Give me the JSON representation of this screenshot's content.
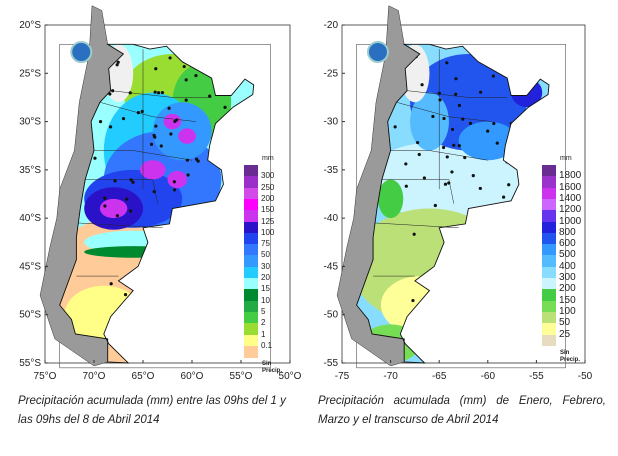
{
  "maps": [
    {
      "id": "weekly",
      "lat_labels": [
        "20°S",
        "25°S",
        "30°S",
        "35°S",
        "40°S",
        "45°S",
        "50°S",
        "55°S"
      ],
      "lon_labels": [
        "75°O",
        "70°O",
        "65°O",
        "60°O",
        "55°O",
        "50°O"
      ],
      "legend": {
        "unit": "mm",
        "no_precip_label": [
          "Sin",
          "Precip."
        ],
        "levels": [
          "300",
          "250",
          "200",
          "150",
          "125",
          "100",
          "75",
          "50",
          "30",
          "20",
          "15",
          "10",
          "5",
          "2",
          "1",
          "0.1"
        ],
        "colors": [
          "#6a2c91",
          "#9b30c8",
          "#d24be8",
          "#ff00ff",
          "#cc33ee",
          "#2a12c8",
          "#2244ee",
          "#3377ff",
          "#3399ff",
          "#22ccff",
          "#99ffff",
          "#008a30",
          "#22aa44",
          "#44cc44",
          "#99dd33",
          "#ffff88",
          "#ffcc99"
        ]
      },
      "caption": [
        "Precipitación acumulada (mm) entre las 09hs del 1 y",
        "las 09hs del 8 de Abril 2014"
      ]
    },
    {
      "id": "seasonal",
      "lat_labels": [
        "-20",
        "-25",
        "-30",
        "-35",
        "-40",
        "-45",
        "-50",
        "-55"
      ],
      "lon_labels": [
        "-75",
        "-70",
        "-65",
        "-60",
        "-55",
        "-50"
      ],
      "legend": {
        "unit": "mm",
        "no_precip_label": [
          "Sin",
          "Precip."
        ],
        "levels": [
          "1800",
          "1600",
          "1400",
          "1200",
          "1000",
          "800",
          "600",
          "500",
          "400",
          "300",
          "200",
          "150",
          "100",
          "50",
          "25"
        ],
        "colors": [
          "#6a2c91",
          "#9933cc",
          "#cc33ee",
          "#cc66ff",
          "#6633ee",
          "#2222dd",
          "#2255ee",
          "#3399ff",
          "#55bbff",
          "#88ddff",
          "#ccf4ff",
          "#44cc44",
          "#77dd55",
          "#bbe077",
          "#ffff99",
          "#e8dcc0"
        ]
      },
      "caption": [
        "Precipitación acumulada (mm) de Enero, Febrero,",
        "Marzo y el transcurso de Abril 2014"
      ]
    }
  ]
}
